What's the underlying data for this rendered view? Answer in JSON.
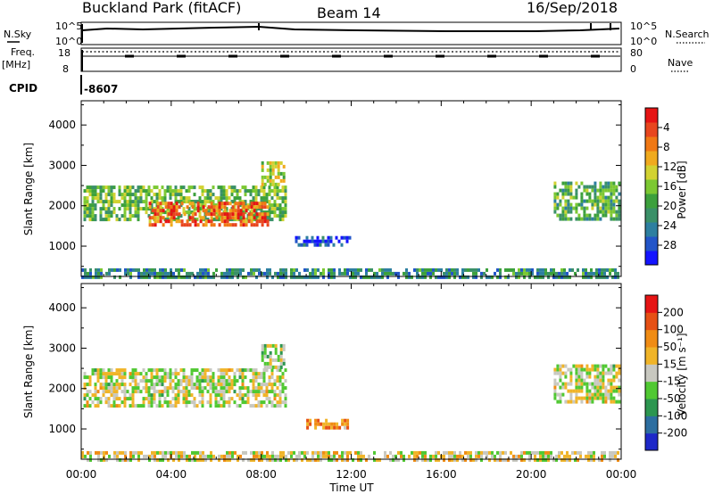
{
  "header": {
    "title": "Buckland Park (fitACF)",
    "beam": "Beam 14",
    "date": "16/Sep/2018"
  },
  "strips": {
    "nsky_label": "N.Sky",
    "nsky_ticks": [
      "10^5",
      "10^0"
    ],
    "nsky_right_ticks": [
      "10^5",
      "10^0"
    ],
    "nsearch_label": "N.Search",
    "freq_label_1": "Freq.",
    "freq_label_2": "[MHz]",
    "freq_ticks": [
      "18",
      "8"
    ],
    "nave_ticks": [
      "80",
      "0"
    ],
    "nave_label": "Nave",
    "cpid_label": "CPID",
    "cpid_value": "-8607"
  },
  "chart_data": [
    {
      "type": "heatmap",
      "name": "power-panel",
      "ylabel": "Slant Range [km]",
      "yticks": [
        "1000",
        "2000",
        "3000",
        "4000"
      ],
      "ylim": [
        250,
        4600
      ],
      "xlim": [
        0,
        24
      ],
      "xticks": [
        "00:00",
        "04:00",
        "08:00",
        "12:00",
        "16:00",
        "20:00",
        "00:00"
      ],
      "colorbar": {
        "label": "Power [dB]",
        "ticks": [
          "4",
          "8",
          "12",
          "16",
          "20",
          "24",
          "28"
        ],
        "colors": [
          "#1414ff",
          "#2255c8",
          "#2d7fa0",
          "#3a9068",
          "#3ca03c",
          "#7cc832",
          "#d2d232",
          "#f0aa1e",
          "#f07814",
          "#e8461e",
          "#e61414"
        ]
      },
      "regions": [
        {
          "t0": 0.1,
          "t1": 9.1,
          "r0": 1700,
          "r1": 2500,
          "level": 0.45
        },
        {
          "t0": 3.0,
          "t1": 8.3,
          "r0": 1500,
          "r1": 2100,
          "level": 0.8
        },
        {
          "t0": 8.0,
          "t1": 9.0,
          "r0": 2500,
          "r1": 3100,
          "level": 0.55
        },
        {
          "t0": 9.5,
          "t1": 11.9,
          "r0": 1000,
          "r1": 1250,
          "level": 0.12
        },
        {
          "t0": 21.0,
          "t1": 23.9,
          "r0": 1700,
          "r1": 2600,
          "level": 0.4
        },
        {
          "t0": 0.0,
          "t1": 23.9,
          "r0": 250,
          "r1": 450,
          "level": 0.3
        }
      ]
    },
    {
      "type": "heatmap",
      "name": "velocity-panel",
      "ylabel": "Slant Range [km]",
      "yticks": [
        "1000",
        "2000",
        "3000",
        "4000"
      ],
      "ylim": [
        250,
        4600
      ],
      "xlim": [
        0,
        24
      ],
      "xlabel": "Time UT",
      "xticks": [
        "00:00",
        "04:00",
        "08:00",
        "12:00",
        "16:00",
        "20:00",
        "00:00"
      ],
      "colorbar": {
        "label": "Velocity [m s⁻¹]",
        "ticks": [
          "200",
          "100",
          "50",
          "15",
          "-15",
          "-50",
          "-100",
          "-200"
        ],
        "colors": [
          "#1e28c8",
          "#2d6ea0",
          "#2d9650",
          "#50c832",
          "#c8c8c0",
          "#f0b428",
          "#f08c14",
          "#e65014",
          "#e61414"
        ]
      },
      "regions": [
        {
          "t0": 0.1,
          "t1": 9.1,
          "r0": 1600,
          "r1": 2500,
          "level": 0.5
        },
        {
          "t0": 8.0,
          "t1": 9.0,
          "r0": 2500,
          "r1": 3100,
          "level": 0.45
        },
        {
          "t0": 10.0,
          "t1": 11.8,
          "r0": 1050,
          "r1": 1250,
          "level": 0.7
        },
        {
          "t0": 21.0,
          "t1": 23.9,
          "r0": 1700,
          "r1": 2600,
          "level": 0.5
        },
        {
          "t0": 0.0,
          "t1": 23.9,
          "r0": 250,
          "r1": 450,
          "level": 0.55
        }
      ]
    }
  ]
}
